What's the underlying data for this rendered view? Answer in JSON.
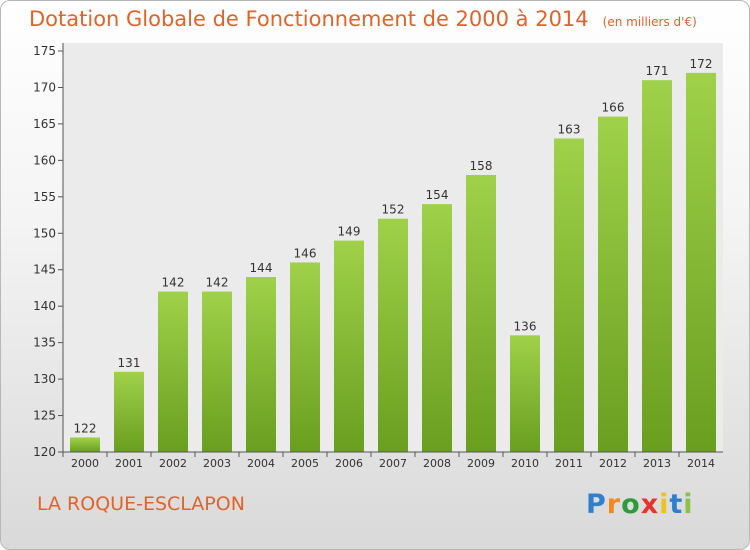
{
  "title": "Dotation Globale de Fonctionnement de 2000 à 2014",
  "unit_label": "(en milliers d'€)",
  "commune": "LA ROQUE-ESCLAPON",
  "brand": {
    "text": "Proxiti",
    "letters": [
      {
        "ch": "P",
        "color": "#2f7fcf"
      },
      {
        "ch": "r",
        "color": "#f08a1d"
      },
      {
        "ch": "o",
        "color": "#2f9a3a"
      },
      {
        "ch": "x",
        "color": "#e8332a"
      },
      {
        "ch": "i",
        "color": "#f0c21d"
      },
      {
        "ch": "t",
        "color": "#2f7fcf"
      },
      {
        "ch": "i",
        "color": "#8bc34a"
      }
    ]
  },
  "colors": {
    "bar_top": "#9fd14a",
    "bar_bottom": "#6a9e1f",
    "title": "#e0632a"
  },
  "chart_data": {
    "type": "bar",
    "categories": [
      "2000",
      "2001",
      "2002",
      "2003",
      "2004",
      "2005",
      "2006",
      "2007",
      "2008",
      "2009",
      "2010",
      "2011",
      "2012",
      "2013",
      "2014"
    ],
    "values": [
      122,
      131,
      142,
      142,
      144,
      146,
      149,
      152,
      154,
      158,
      136,
      163,
      166,
      171,
      172
    ],
    "ylim": [
      120,
      175
    ],
    "yticks": [
      120,
      125,
      130,
      135,
      140,
      145,
      150,
      155,
      160,
      165,
      170,
      175
    ],
    "grid": false,
    "legend": "none"
  }
}
